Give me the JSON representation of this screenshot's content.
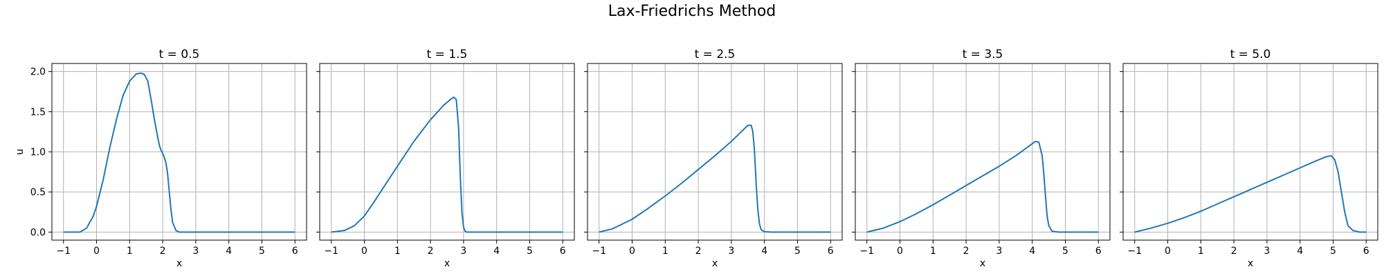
{
  "figure": {
    "title": "Lax-Friedrichs Method"
  },
  "chart_data": [
    {
      "type": "line",
      "title": "t = 0.5",
      "xlabel": "x",
      "ylabel": "u",
      "xlim": [
        -1.35,
        6.35
      ],
      "ylim": [
        -0.1,
        2.1
      ],
      "xticks": [
        -1,
        0,
        1,
        2,
        3,
        4,
        5,
        6
      ],
      "yticks": [
        0.0,
        0.5,
        1.0,
        1.5,
        2.0
      ],
      "ytick_labels": [
        "0.0",
        "0.5",
        "1.0",
        "1.5",
        "2.0"
      ],
      "grid": true,
      "color": "#1f77b4",
      "series": [
        {
          "x": [
            -1,
            -0.5,
            -0.3,
            -0.1,
            0,
            0.2,
            0.4,
            0.6,
            0.8,
            1.0,
            1.2,
            1.35,
            1.45,
            1.55,
            1.65,
            1.75,
            1.85,
            1.9,
            1.95,
            2.0,
            2.05,
            2.1,
            2.15,
            2.2,
            2.25,
            2.3,
            2.4,
            2.5,
            3,
            4,
            5,
            6
          ],
          "y": [
            0,
            0.0,
            0.05,
            0.2,
            0.32,
            0.65,
            1.05,
            1.4,
            1.7,
            1.88,
            1.97,
            1.98,
            1.96,
            1.88,
            1.65,
            1.4,
            1.18,
            1.08,
            1.02,
            0.98,
            0.93,
            0.86,
            0.72,
            0.5,
            0.28,
            0.12,
            0.02,
            0.0,
            0,
            0,
            0,
            0
          ]
        }
      ]
    },
    {
      "type": "line",
      "title": "t = 1.5",
      "xlabel": "x",
      "xlim": [
        -1.35,
        6.35
      ],
      "ylim": [
        -0.1,
        2.1
      ],
      "xticks": [
        -1,
        0,
        1,
        2,
        3,
        4,
        5,
        6
      ],
      "yticks": [
        0.0,
        0.5,
        1.0,
        1.5,
        2.0
      ],
      "grid": true,
      "color": "#1f77b4",
      "series": [
        {
          "x": [
            -1,
            -0.6,
            -0.3,
            0,
            0.3,
            0.6,
            1.0,
            1.5,
            2.0,
            2.4,
            2.6,
            2.7,
            2.78,
            2.85,
            2.9,
            2.95,
            3.0,
            3.05,
            3.1,
            3.2,
            3.5,
            4,
            5,
            6
          ],
          "y": [
            0,
            0.02,
            0.08,
            0.2,
            0.38,
            0.57,
            0.82,
            1.13,
            1.4,
            1.58,
            1.65,
            1.68,
            1.65,
            1.3,
            0.7,
            0.25,
            0.06,
            0.01,
            0,
            0,
            0,
            0,
            0,
            0
          ]
        }
      ]
    },
    {
      "type": "line",
      "title": "t = 2.5",
      "xlabel": "x",
      "xlim": [
        -1.35,
        6.35
      ],
      "ylim": [
        -0.1,
        2.1
      ],
      "xticks": [
        -1,
        0,
        1,
        2,
        3,
        4,
        5,
        6
      ],
      "yticks": [
        0.0,
        0.5,
        1.0,
        1.5,
        2.0
      ],
      "grid": true,
      "color": "#1f77b4",
      "series": [
        {
          "x": [
            -1,
            -0.6,
            -0.3,
            0,
            0.5,
            1.0,
            1.5,
            2.0,
            2.5,
            3.0,
            3.3,
            3.5,
            3.6,
            3.65,
            3.7,
            3.75,
            3.8,
            3.85,
            3.9,
            4.0,
            4.2,
            5,
            6
          ],
          "y": [
            0,
            0.04,
            0.1,
            0.16,
            0.3,
            0.45,
            0.61,
            0.78,
            0.95,
            1.13,
            1.25,
            1.33,
            1.33,
            1.25,
            1.0,
            0.6,
            0.28,
            0.1,
            0.03,
            0.005,
            0,
            0,
            0
          ]
        }
      ]
    },
    {
      "type": "line",
      "title": "t = 3.5",
      "xlabel": "x",
      "xlim": [
        -1.35,
        6.35
      ],
      "ylim": [
        -0.1,
        2.1
      ],
      "xticks": [
        -1,
        0,
        1,
        2,
        3,
        4,
        5,
        6
      ],
      "yticks": [
        0.0,
        0.5,
        1.0,
        1.5,
        2.0
      ],
      "grid": true,
      "color": "#1f77b4",
      "series": [
        {
          "x": [
            -1,
            -0.5,
            0,
            0.5,
            1.0,
            1.5,
            2.0,
            2.5,
            3.0,
            3.5,
            3.9,
            4.1,
            4.2,
            4.3,
            4.35,
            4.4,
            4.45,
            4.5,
            4.6,
            4.8,
            5,
            6
          ],
          "y": [
            0,
            0.05,
            0.13,
            0.23,
            0.34,
            0.46,
            0.58,
            0.7,
            0.82,
            0.95,
            1.07,
            1.13,
            1.12,
            0.95,
            0.72,
            0.45,
            0.2,
            0.08,
            0.01,
            0,
            0,
            0
          ]
        }
      ]
    },
    {
      "type": "line",
      "title": "t = 5.0",
      "xlabel": "x",
      "xlim": [
        -1.35,
        6.35
      ],
      "ylim": [
        -0.1,
        2.1
      ],
      "xticks": [
        -1,
        0,
        1,
        2,
        3,
        4,
        5,
        6
      ],
      "yticks": [
        0.0,
        0.5,
        1.0,
        1.5,
        2.0
      ],
      "grid": true,
      "color": "#1f77b4",
      "series": [
        {
          "x": [
            -1,
            -0.5,
            0,
            0.5,
            1.0,
            1.5,
            2.0,
            2.5,
            3.0,
            3.5,
            4.0,
            4.5,
            4.8,
            4.95,
            5.05,
            5.15,
            5.25,
            5.35,
            5.45,
            5.6,
            5.8,
            6
          ],
          "y": [
            0,
            0.05,
            0.11,
            0.18,
            0.26,
            0.35,
            0.44,
            0.53,
            0.62,
            0.71,
            0.8,
            0.89,
            0.94,
            0.95,
            0.9,
            0.75,
            0.5,
            0.25,
            0.08,
            0.02,
            0,
            0
          ]
        }
      ]
    }
  ]
}
